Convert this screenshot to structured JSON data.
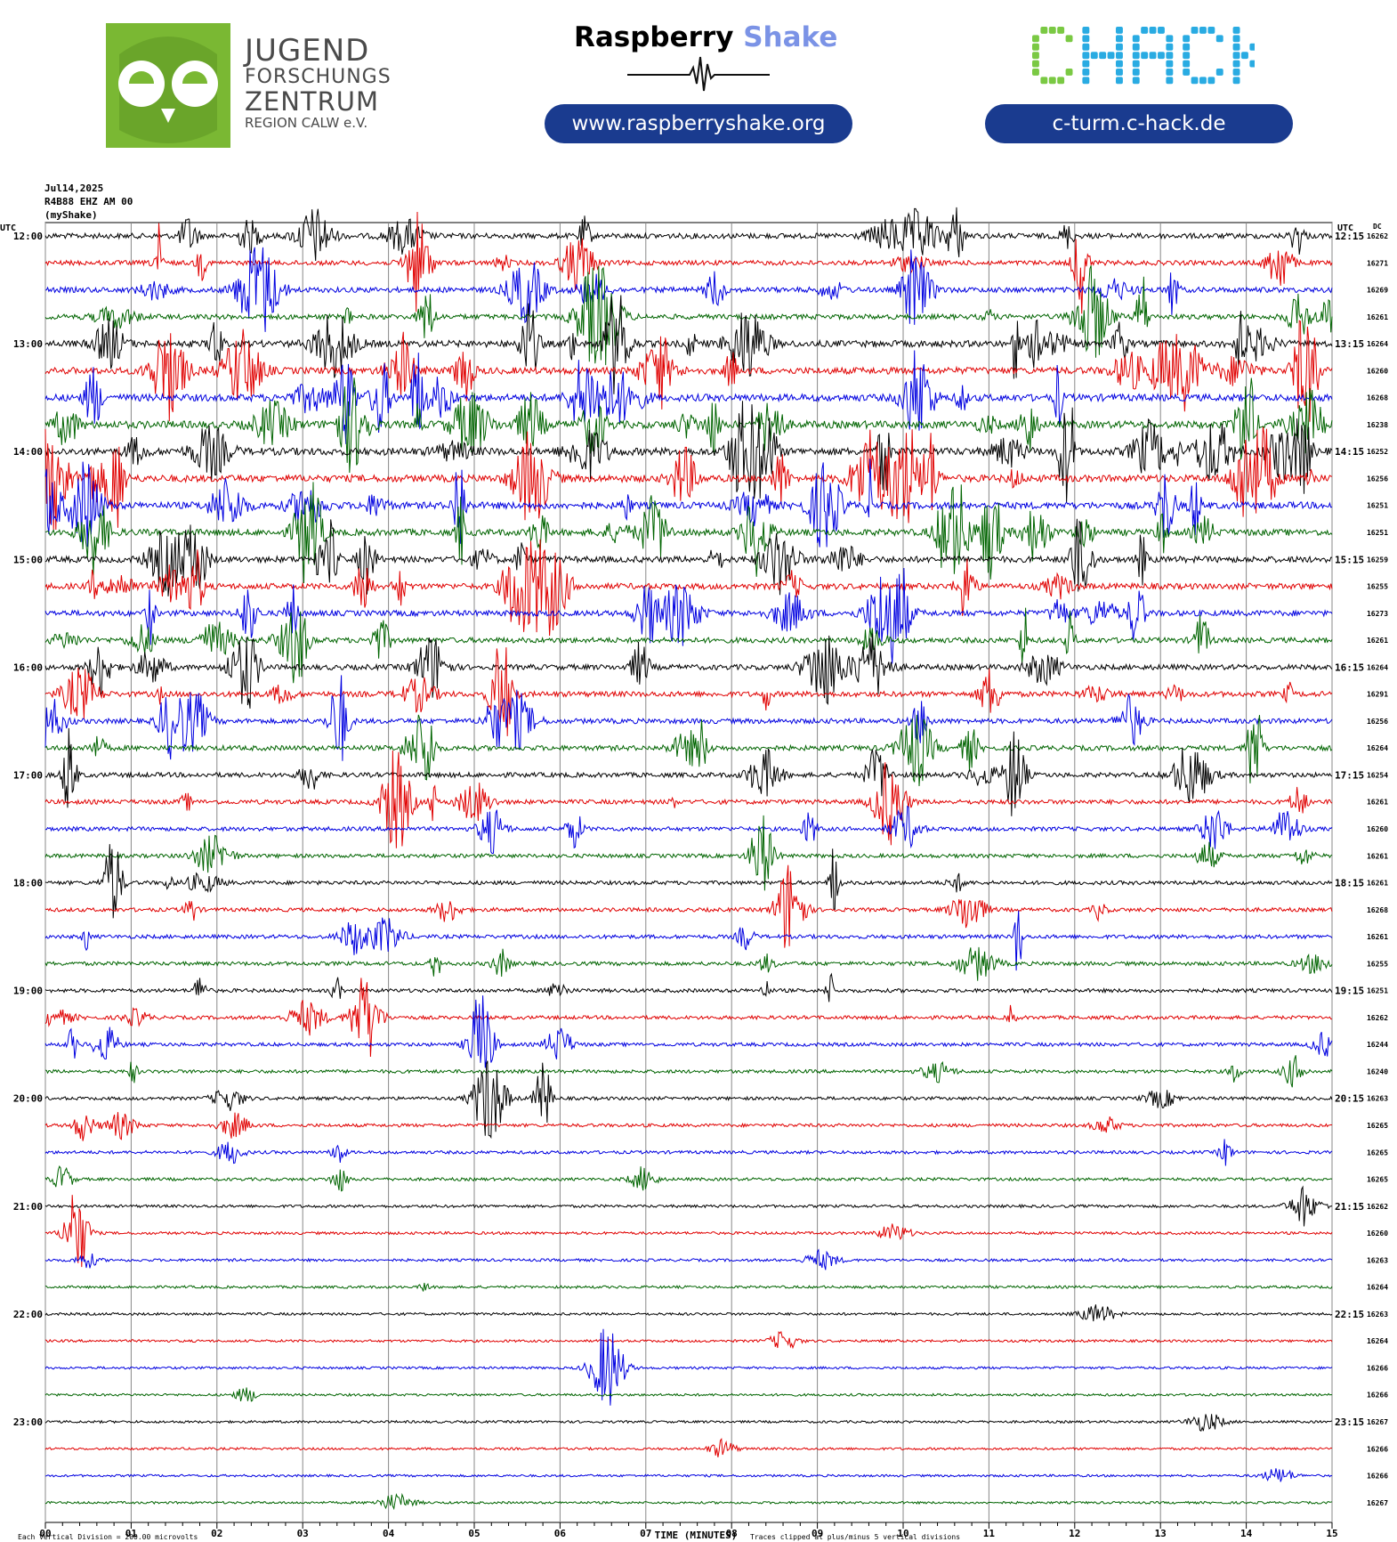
{
  "logos": {
    "jfz": {
      "line1": "JUGEND",
      "line2": "FORSCHUNGS",
      "line3": "ZENTRUM",
      "line4": "REGION CALW e.V.",
      "color": "#7ab833"
    },
    "raspberry_shake": {
      "word1": "Raspberry",
      "word2": "Shake",
      "url": "www.raspberryshake.org"
    },
    "chack": {
      "text": "CHACK",
      "url": "c-turm.c-hack.de",
      "color_a": "#7ac943",
      "color_b": "#29abe2"
    }
  },
  "station": {
    "date": "Jul14,2025",
    "channel": "R4B88 EHZ AM 00",
    "source": "(myShake)"
  },
  "axes": {
    "left_label": "UTC",
    "right_label": "UTC",
    "dc_label": "DC",
    "xlabel": "TIME (MINUTES)",
    "footer_left": "Each Vertical Division =  200.00 microvolts",
    "footer_right": "Traces clipped at plus/minus 5 vertical divisions"
  },
  "chart_data": {
    "type": "line",
    "title": "",
    "xlabel": "TIME (MINUTES)",
    "xlim": [
      0,
      15
    ],
    "x_ticks": [
      "00",
      "01",
      "02",
      "03",
      "04",
      "05",
      "06",
      "07",
      "08",
      "09",
      "10",
      "11",
      "12",
      "13",
      "14",
      "15"
    ],
    "row_colors": [
      "#000000",
      "#e00000",
      "#0000e0",
      "#006400"
    ],
    "left_hour_labels": [
      "12:00",
      "13:00",
      "14:00",
      "15:00",
      "16:00",
      "17:00",
      "18:00",
      "19:00",
      "20:00",
      "21:00",
      "22:00",
      "23:00"
    ],
    "right_hour_labels": [
      "12:15",
      "13:15",
      "14:15",
      "15:15",
      "16:15",
      "17:15",
      "18:15",
      "19:15",
      "20:15",
      "21:15",
      "22:15",
      "23:15"
    ],
    "dc_values": [
      "16262",
      "16271",
      "16269",
      "16261",
      "16264",
      "16260",
      "16268",
      "16238",
      "16252",
      "16256",
      "16251",
      "16251",
      "16259",
      "16255",
      "16273",
      "16261",
      "16264",
      "16291",
      "16256",
      "16264",
      "16254",
      "16261",
      "16260",
      "16261",
      "16261",
      "16268",
      "16261",
      "16255",
      "16251",
      "16262",
      "16244",
      "16240",
      "16263",
      "16265",
      "16265",
      "16265",
      "16262",
      "16260",
      "16263",
      "16264",
      "16263",
      "16264",
      "16266",
      "16266",
      "16267",
      "16266",
      "16266",
      "16267"
    ],
    "row_activity": [
      0.55,
      0.45,
      0.55,
      0.5,
      0.75,
      0.8,
      0.85,
      0.9,
      0.9,
      0.85,
      0.8,
      0.75,
      0.7,
      0.65,
      0.6,
      0.55,
      0.55,
      0.55,
      0.5,
      0.5,
      0.45,
      0.4,
      0.35,
      0.3,
      0.3,
      0.3,
      0.3,
      0.3,
      0.28,
      0.25,
      0.25,
      0.22,
      0.2,
      0.2,
      0.18,
      0.15,
      0.12,
      0.1,
      0.1,
      0.08,
      0.07,
      0.06,
      0.05,
      0.05,
      0.05,
      0.04,
      0.03,
      0.03
    ]
  }
}
